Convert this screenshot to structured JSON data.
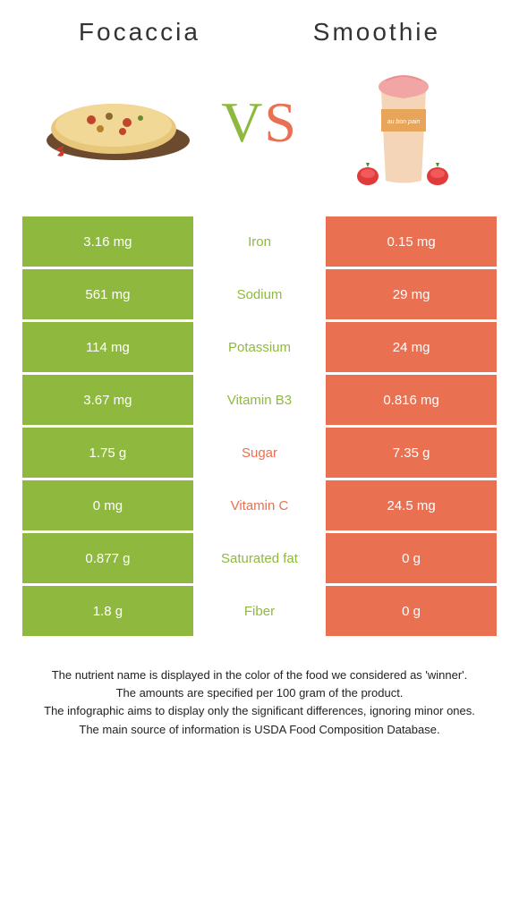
{
  "titles": {
    "left": "Focaccia",
    "right": "Smoothie"
  },
  "vs": "VS",
  "colors": {
    "left_cell": "#8fb93e",
    "right_cell": "#ea7052",
    "vs_left": "#8fb93e",
    "vs_right": "#ea7052",
    "title_text": "#333333",
    "nutrient_left_winner": "#8fb93e",
    "nutrient_right_winner": "#ea7052",
    "footnote": "#222222"
  },
  "typography": {
    "title_fontsize": 28,
    "title_letter_spacing": 3,
    "vs_fontsize": 64,
    "cell_fontsize": 15,
    "footnote_fontsize": 13
  },
  "nutrients": [
    {
      "label": "Iron",
      "left": "3.16 mg",
      "right": "0.15 mg",
      "winner": "left"
    },
    {
      "label": "Sodium",
      "left": "561 mg",
      "right": "29 mg",
      "winner": "left"
    },
    {
      "label": "Potassium",
      "left": "114 mg",
      "right": "24 mg",
      "winner": "left"
    },
    {
      "label": "Vitamin B3",
      "left": "3.67 mg",
      "right": "0.816 mg",
      "winner": "left"
    },
    {
      "label": "Sugar",
      "left": "1.75 g",
      "right": "7.35 g",
      "winner": "right"
    },
    {
      "label": "Vitamin C",
      "left": "0 mg",
      "right": "24.5 mg",
      "winner": "right"
    },
    {
      "label": "Saturated fat",
      "left": "0.877 g",
      "right": "0 g",
      "winner": "left"
    },
    {
      "label": "Fiber",
      "left": "1.8 g",
      "right": "0 g",
      "winner": "left"
    }
  ],
  "footnotes": [
    "The nutrient name is displayed in the color of the food we considered as 'winner'.",
    "The amounts are specified per 100 gram of the product.",
    "The infographic aims to display only the significant differences, ignoring minor ones.",
    "The main source of information is USDA Food Composition Database."
  ]
}
